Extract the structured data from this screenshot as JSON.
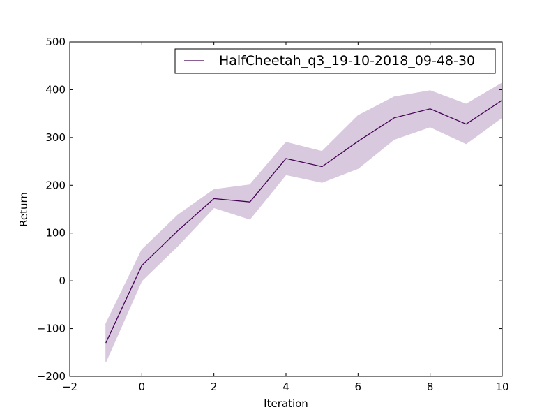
{
  "chart_data": {
    "type": "line",
    "title": "",
    "xlabel": "Iteration",
    "ylabel": "Return",
    "xlim": [
      -2,
      10
    ],
    "ylim": [
      -200,
      500
    ],
    "xticks": [
      -2,
      0,
      2,
      4,
      6,
      8,
      10
    ],
    "xtick_labels": [
      "−2",
      "0",
      "2",
      "4",
      "6",
      "8",
      "10"
    ],
    "yticks": [
      -200,
      -100,
      0,
      100,
      200,
      300,
      400,
      500
    ],
    "ytick_labels": [
      "−200",
      "−100",
      "0",
      "100",
      "200",
      "300",
      "400",
      "500"
    ],
    "grid": false,
    "legend_position": "top-right",
    "series": [
      {
        "name": "HalfCheetah_q3_19-10-2018_09-48-30",
        "color": "#440154",
        "band_color": "#d8c9de",
        "x": [
          -1,
          0,
          1,
          2,
          3,
          4,
          5,
          6,
          7,
          8,
          9,
          10
        ],
        "y": [
          -130,
          32,
          105,
          172,
          165,
          256,
          239,
          292,
          341,
          360,
          328,
          378
        ],
        "upper": [
          -90,
          65,
          138,
          191,
          201,
          290,
          271,
          346,
          385,
          398,
          370,
          414
        ],
        "lower": [
          -170,
          0,
          73,
          153,
          129,
          222,
          206,
          235,
          296,
          322,
          287,
          342
        ]
      }
    ]
  }
}
